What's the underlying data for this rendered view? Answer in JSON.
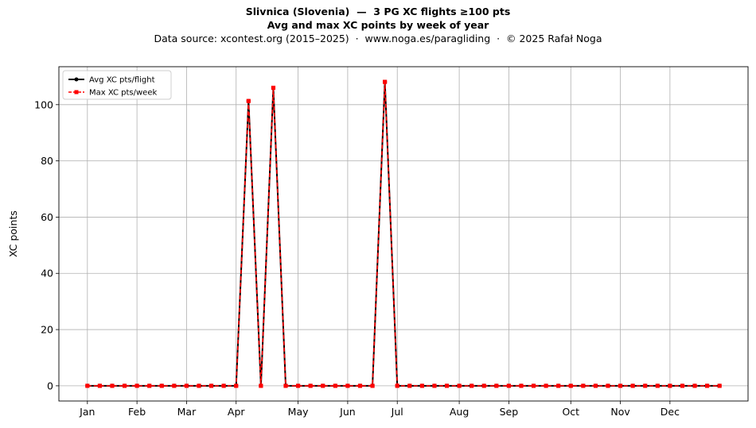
{
  "title_line1": "Slivnica (Slovenia)  —  3 PG XC flights ≥100 pts",
  "title_line2": "Avg and max XC points by week of year",
  "subtitle": "Data source: xcontest.org (2015–2025)  ·  www.noga.es/paragliding  ·  © 2025 Rafał Noga",
  "chart_data": {
    "type": "line",
    "x": [
      1,
      2,
      3,
      4,
      5,
      6,
      7,
      8,
      9,
      10,
      11,
      12,
      13,
      14,
      15,
      16,
      17,
      18,
      19,
      20,
      21,
      22,
      23,
      24,
      25,
      26,
      27,
      28,
      29,
      30,
      31,
      32,
      33,
      34,
      35,
      36,
      37,
      38,
      39,
      40,
      41,
      42,
      43,
      44,
      45,
      46,
      47,
      48,
      49,
      50,
      51,
      52
    ],
    "month_ticks": [
      {
        "label": "Jan",
        "week": 1
      },
      {
        "label": "Feb",
        "week": 5
      },
      {
        "label": "Mar",
        "week": 9
      },
      {
        "label": "Apr",
        "week": 13
      },
      {
        "label": "May",
        "week": 18
      },
      {
        "label": "Jun",
        "week": 22
      },
      {
        "label": "Jul",
        "week": 26
      },
      {
        "label": "Aug",
        "week": 31
      },
      {
        "label": "Sep",
        "week": 35
      },
      {
        "label": "Oct",
        "week": 40
      },
      {
        "label": "Nov",
        "week": 44
      },
      {
        "label": "Dec",
        "week": 48
      }
    ],
    "series": [
      {
        "name": "Avg XC pts/flight",
        "color": "#000000",
        "style": "solid-circle",
        "values": [
          0,
          0,
          0,
          0,
          0,
          0,
          0,
          0,
          0,
          0,
          0,
          0,
          0,
          101.3,
          0,
          106,
          0,
          0,
          0,
          0,
          0,
          0,
          0,
          0,
          108.1,
          0,
          0,
          0,
          0,
          0,
          0,
          0,
          0,
          0,
          0,
          0,
          0,
          0,
          0,
          0,
          0,
          0,
          0,
          0,
          0,
          0,
          0,
          0,
          0,
          0,
          0,
          0
        ]
      },
      {
        "name": "Max XC pts/week",
        "color": "#ff0000",
        "style": "dashed-square",
        "values": [
          0,
          0,
          0,
          0,
          0,
          0,
          0,
          0,
          0,
          0,
          0,
          0,
          0,
          101.3,
          0,
          106,
          0,
          0,
          0,
          0,
          0,
          0,
          0,
          0,
          108.1,
          0,
          0,
          0,
          0,
          0,
          0,
          0,
          0,
          0,
          0,
          0,
          0,
          0,
          0,
          0,
          0,
          0,
          0,
          0,
          0,
          0,
          0,
          0,
          0,
          0,
          0,
          0
        ]
      }
    ],
    "xlabel": "",
    "ylabel": "XC points",
    "xlim": [
      -1.3,
      54.3
    ],
    "ylim": [
      -5.4,
      113.5
    ],
    "yticks": [
      0,
      20,
      40,
      60,
      80,
      100
    ],
    "grid": true,
    "legend": "upper-left"
  }
}
